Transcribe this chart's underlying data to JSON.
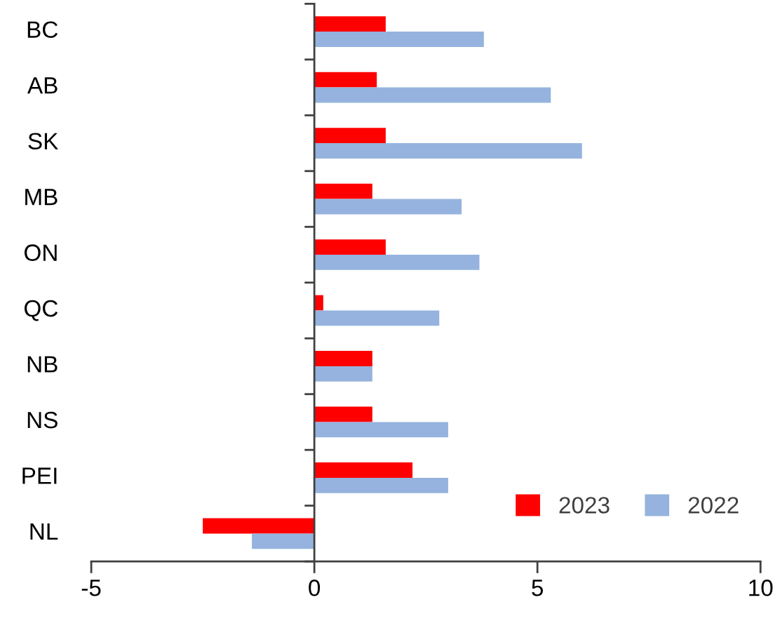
{
  "chart_data": {
    "type": "bar",
    "orientation": "horizontal",
    "categories": [
      "BC",
      "AB",
      "SK",
      "MB",
      "ON",
      "QC",
      "NB",
      "NS",
      "PEI",
      "NL"
    ],
    "series": [
      {
        "name": "2023",
        "color": "#ff0000",
        "values": [
          1.6,
          1.4,
          1.6,
          1.3,
          1.6,
          0.2,
          1.3,
          1.3,
          2.2,
          -2.5
        ]
      },
      {
        "name": "2022",
        "color": "#95b3de",
        "values": [
          3.8,
          5.3,
          6.0,
          3.3,
          3.7,
          2.8,
          1.3,
          3.0,
          3.0,
          -1.4
        ]
      }
    ],
    "xlim": [
      -5,
      10
    ],
    "xticks": [
      {
        "value": -5,
        "label": "-5"
      },
      0,
      5,
      10
    ],
    "legend": "bottom right"
  }
}
